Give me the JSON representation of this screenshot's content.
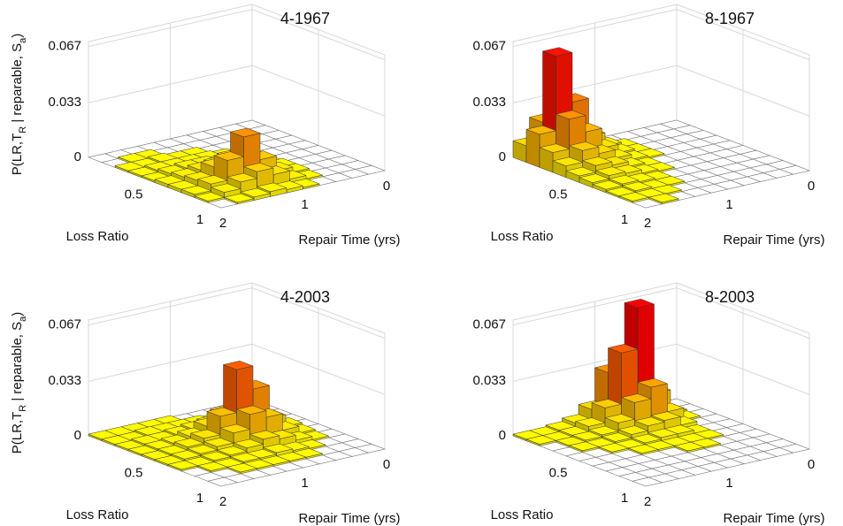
{
  "chart_data": [
    {
      "type": "bar3d",
      "title": "4-1967",
      "xlabel": "Loss Ratio",
      "ylabel": "Repair Time (yrs)",
      "zlabel": [
        "P(LR,T",
        "R",
        " | reparable, S",
        "a",
        ")"
      ],
      "zlabel_subscript": [
        false,
        true,
        false,
        true,
        false
      ],
      "xlim": [
        0,
        1
      ],
      "xticks": [
        0.5,
        1
      ],
      "ylim": [
        0,
        2
      ],
      "yticks": [
        0,
        1,
        2
      ],
      "zlim": [
        0,
        0.07
      ],
      "zticks": [
        0,
        0.033,
        0.067
      ],
      "grid": true,
      "colormap": [
        "#ffff00",
        "#ff0000"
      ],
      "values": [
        [
          0,
          0,
          0,
          0,
          0,
          0,
          0,
          0,
          0,
          0
        ],
        [
          0,
          0,
          0,
          0,
          0,
          0,
          0,
          0.001,
          0.001,
          0
        ],
        [
          0,
          0,
          0,
          0,
          0,
          0.001,
          0.001,
          0.002,
          0.001,
          0.001
        ],
        [
          0,
          0,
          0,
          0,
          0.001,
          0.002,
          0.002,
          0.002,
          0.002,
          0.001
        ],
        [
          0,
          0,
          0,
          0.001,
          0.002,
          0.003,
          0.004,
          0.004,
          0.003,
          0.001
        ],
        [
          0,
          0,
          0,
          0.001,
          0.003,
          0.005,
          0.007,
          0.006,
          0.004,
          0.002
        ],
        [
          0,
          0,
          0,
          0.002,
          0.004,
          0.009,
          0.014,
          0.011,
          0.005,
          0.002
        ],
        [
          0,
          0,
          0,
          0.002,
          0.005,
          0.014,
          0.03,
          0.018,
          0.006,
          0.002
        ],
        [
          0,
          0,
          0,
          0.001,
          0.003,
          0.008,
          0.012,
          0.008,
          0.004,
          0.001
        ],
        [
          0,
          0,
          0,
          0,
          0.001,
          0.002,
          0.003,
          0.002,
          0.001,
          0
        ]
      ]
    },
    {
      "type": "bar3d",
      "title": "8-1967",
      "xlabel": "Loss Ratio",
      "ylabel": "Repair Time (yrs)",
      "xlim": [
        0,
        1
      ],
      "xticks": [
        0.5,
        1
      ],
      "ylim": [
        0,
        2
      ],
      "yticks": [
        0,
        1,
        2
      ],
      "zlim": [
        0,
        0.07
      ],
      "zticks": [
        0,
        0.033,
        0.067
      ],
      "grid": true,
      "colormap": [
        "#ffff00",
        "#ff0000"
      ],
      "values": [
        [
          0,
          0,
          0,
          0,
          0,
          0.002,
          0.006,
          0.014,
          0.022,
          0.01
        ],
        [
          0,
          0,
          0,
          0,
          0.001,
          0.004,
          0.012,
          0.035,
          0.065,
          0.02
        ],
        [
          0,
          0,
          0,
          0,
          0.001,
          0.003,
          0.008,
          0.02,
          0.03,
          0.012
        ],
        [
          0,
          0,
          0,
          0,
          0.001,
          0.002,
          0.005,
          0.01,
          0.014,
          0.007
        ],
        [
          0,
          0,
          0,
          0,
          0,
          0.001,
          0.003,
          0.006,
          0.008,
          0.004
        ],
        [
          0,
          0,
          0,
          0,
          0,
          0.001,
          0.002,
          0.004,
          0.005,
          0.003
        ],
        [
          0,
          0,
          0,
          0,
          0,
          0,
          0.001,
          0.002,
          0.003,
          0.002
        ],
        [
          0,
          0,
          0,
          0,
          0,
          0,
          0.001,
          0.001,
          0.002,
          0.001
        ],
        [
          0,
          0,
          0,
          0,
          0,
          0,
          0,
          0.001,
          0.001,
          0.001
        ],
        [
          0,
          0,
          0,
          0,
          0,
          0,
          0,
          0,
          0.001,
          0
        ]
      ]
    },
    {
      "type": "bar3d",
      "title": "4-2003",
      "xlabel": "Loss Ratio",
      "ylabel": "Repair Time (yrs)",
      "zlabel": [
        "P(LR,T",
        "R",
        " | reparable, S",
        "a",
        ")"
      ],
      "zlabel_subscript": [
        false,
        true,
        false,
        true,
        false
      ],
      "xlim": [
        0,
        1
      ],
      "xticks": [
        0.5,
        1
      ],
      "ylim": [
        0,
        2
      ],
      "yticks": [
        0,
        1,
        2
      ],
      "zlim": [
        0,
        0.07
      ],
      "zticks": [
        0,
        0.033,
        0.067
      ],
      "grid": true,
      "colormap": [
        "#ffff00",
        "#ff0000"
      ],
      "values": [
        [
          0,
          0,
          0,
          0,
          0,
          0.001,
          0.001,
          0.001,
          0.001,
          0.001
        ],
        [
          0,
          0,
          0.001,
          0.001,
          0.002,
          0.002,
          0.002,
          0.002,
          0.001,
          0.001
        ],
        [
          0,
          0.001,
          0.002,
          0.004,
          0.005,
          0.004,
          0.003,
          0.002,
          0.002,
          0.001
        ],
        [
          0,
          0.002,
          0.005,
          0.012,
          0.014,
          0.009,
          0.005,
          0.003,
          0.002,
          0.001
        ],
        [
          0,
          0.003,
          0.01,
          0.03,
          0.044,
          0.018,
          0.007,
          0.004,
          0.002,
          0.001
        ],
        [
          0,
          0.002,
          0.006,
          0.016,
          0.02,
          0.011,
          0.005,
          0.003,
          0.002,
          0.001
        ],
        [
          0,
          0.001,
          0.003,
          0.006,
          0.008,
          0.005,
          0.003,
          0.002,
          0.001,
          0.001
        ],
        [
          0,
          0,
          0.001,
          0.002,
          0.003,
          0.002,
          0.002,
          0.001,
          0.001,
          0
        ],
        [
          0,
          0,
          0,
          0.001,
          0.001,
          0.001,
          0.001,
          0.001,
          0,
          0
        ],
        [
          0,
          0,
          0,
          0,
          0,
          0,
          0,
          0,
          0,
          0
        ]
      ]
    },
    {
      "type": "bar3d",
      "title": "8-2003",
      "xlabel": "Loss Ratio",
      "ylabel": "Repair Time (yrs)",
      "xlim": [
        0,
        1
      ],
      "xticks": [
        0.5,
        1
      ],
      "ylim": [
        0,
        2
      ],
      "yticks": [
        0,
        1,
        2
      ],
      "zlim": [
        0,
        0.07
      ],
      "zticks": [
        0,
        0.033,
        0.067
      ],
      "grid": true,
      "colormap": [
        "#ffff00",
        "#ff0000"
      ],
      "values": [
        [
          0,
          0,
          0.008,
          0.04,
          0.03,
          0.01,
          0.004,
          0.002,
          0.001,
          0.001
        ],
        [
          0,
          0.002,
          0.016,
          0.07,
          0.045,
          0.014,
          0.005,
          0.002,
          0.001,
          0.001
        ],
        [
          0,
          0.001,
          0.008,
          0.025,
          0.018,
          0.008,
          0.003,
          0.002,
          0.001,
          0
        ],
        [
          0,
          0,
          0.003,
          0.008,
          0.007,
          0.004,
          0.002,
          0.001,
          0.001,
          0
        ],
        [
          0,
          0,
          0.001,
          0.003,
          0.003,
          0.002,
          0.001,
          0.001,
          0,
          0
        ],
        [
          0,
          0,
          0.001,
          0.001,
          0.001,
          0.001,
          0.001,
          0,
          0,
          0
        ],
        [
          0,
          0,
          0,
          0.001,
          0.001,
          0,
          0,
          0,
          0,
          0
        ],
        [
          0,
          0,
          0,
          0,
          0,
          0,
          0,
          0,
          0,
          0
        ],
        [
          0,
          0,
          0,
          0,
          0,
          0,
          0,
          0,
          0,
          0
        ],
        [
          0,
          0,
          0,
          0,
          0,
          0,
          0,
          0,
          0,
          0
        ]
      ]
    }
  ]
}
